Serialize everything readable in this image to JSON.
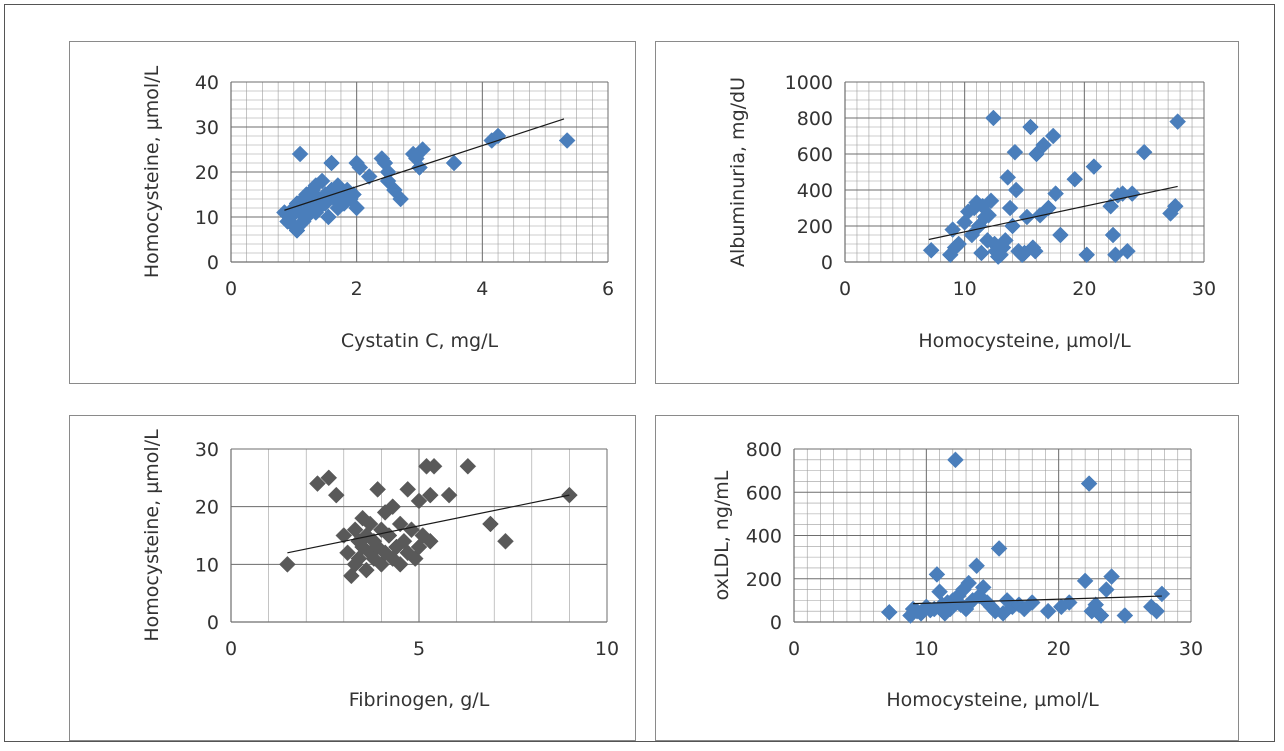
{
  "colors": {
    "blue_marker": "#4a7ebb",
    "gray_marker": "#595959",
    "trend": "#1a1a1a",
    "grid": "#9c9c9c"
  },
  "chart_data": [
    {
      "id": "tl",
      "type": "scatter",
      "xlabel": "Cystatin C, mg/L",
      "ylabel": "Homocysteine, µmol/L",
      "xlim": [
        0,
        6
      ],
      "ylim": [
        0,
        40
      ],
      "xticks": [
        0,
        2,
        4,
        6
      ],
      "yticks": [
        0,
        10,
        20,
        30,
        40
      ],
      "grid": {
        "x_major": 2,
        "x_minor": 0.25,
        "y_major": 10,
        "y_minor": 2
      },
      "marker_color": "#4a7ebb",
      "trendline": [
        [
          0.85,
          11.5
        ],
        [
          5.3,
          31.8
        ]
      ],
      "points": [
        [
          0.85,
          11
        ],
        [
          0.9,
          9
        ],
        [
          0.95,
          10
        ],
        [
          1.0,
          12
        ],
        [
          1.0,
          8
        ],
        [
          1.05,
          7
        ],
        [
          1.05,
          13
        ],
        [
          1.1,
          24
        ],
        [
          1.1,
          11
        ],
        [
          1.15,
          14
        ],
        [
          1.15,
          9
        ],
        [
          1.2,
          15
        ],
        [
          1.2,
          10
        ],
        [
          1.25,
          12
        ],
        [
          1.3,
          16
        ],
        [
          1.3,
          13
        ],
        [
          1.35,
          11
        ],
        [
          1.35,
          17
        ],
        [
          1.4,
          14
        ],
        [
          1.4,
          12
        ],
        [
          1.45,
          18
        ],
        [
          1.5,
          15
        ],
        [
          1.5,
          13
        ],
        [
          1.55,
          10
        ],
        [
          1.6,
          22
        ],
        [
          1.6,
          16
        ],
        [
          1.65,
          14
        ],
        [
          1.7,
          17
        ],
        [
          1.7,
          12
        ],
        [
          1.75,
          15
        ],
        [
          1.8,
          13
        ],
        [
          1.85,
          16
        ],
        [
          1.9,
          14
        ],
        [
          1.95,
          15
        ],
        [
          2.0,
          22
        ],
        [
          2.0,
          12
        ],
        [
          2.05,
          21
        ],
        [
          2.2,
          19
        ],
        [
          2.4,
          23
        ],
        [
          2.45,
          22
        ],
        [
          2.5,
          20
        ],
        [
          2.5,
          18
        ],
        [
          2.6,
          16
        ],
        [
          2.7,
          14
        ],
        [
          2.9,
          24
        ],
        [
          2.95,
          23
        ],
        [
          3.0,
          21
        ],
        [
          3.05,
          25
        ],
        [
          3.55,
          22
        ],
        [
          4.15,
          27
        ],
        [
          4.25,
          28
        ],
        [
          5.35,
          27
        ]
      ]
    },
    {
      "id": "tr",
      "type": "scatter",
      "xlabel": "Homocysteine, µmol/L",
      "ylabel": "Albuminuria, mg/dU",
      "xlim": [
        0,
        30
      ],
      "ylim": [
        0,
        1000
      ],
      "xticks": [
        0,
        10,
        20,
        30
      ],
      "yticks": [
        0,
        200,
        400,
        600,
        800,
        1000
      ],
      "grid": {
        "x_major": 10,
        "x_minor": 1,
        "y_major": 200,
        "y_minor": 50
      },
      "marker_color": "#4a7ebb",
      "trendline": [
        [
          7.0,
          125
        ],
        [
          27.8,
          420
        ]
      ],
      "points": [
        [
          7.2,
          65
        ],
        [
          8.8,
          40
        ],
        [
          9.0,
          180
        ],
        [
          9.2,
          80
        ],
        [
          9.5,
          100
        ],
        [
          10.0,
          220
        ],
        [
          10.3,
          280
        ],
        [
          10.6,
          150
        ],
        [
          10.8,
          300
        ],
        [
          11.0,
          330
        ],
        [
          11.2,
          200
        ],
        [
          11.4,
          50
        ],
        [
          11.5,
          310
        ],
        [
          11.7,
          250
        ],
        [
          11.9,
          120
        ],
        [
          12.0,
          260
        ],
        [
          12.2,
          340
        ],
        [
          12.4,
          800
        ],
        [
          12.5,
          100
        ],
        [
          12.6,
          60
        ],
        [
          12.8,
          30
        ],
        [
          13.0,
          40
        ],
        [
          13.2,
          80
        ],
        [
          13.4,
          120
        ],
        [
          13.6,
          470
        ],
        [
          13.8,
          300
        ],
        [
          14.0,
          200
        ],
        [
          14.2,
          610
        ],
        [
          14.3,
          400
        ],
        [
          14.5,
          60
        ],
        [
          14.8,
          40
        ],
        [
          15.0,
          50
        ],
        [
          15.2,
          250
        ],
        [
          15.5,
          750
        ],
        [
          15.7,
          80
        ],
        [
          15.9,
          60
        ],
        [
          16.0,
          600
        ],
        [
          16.3,
          260
        ],
        [
          16.6,
          650
        ],
        [
          17.0,
          300
        ],
        [
          17.4,
          700
        ],
        [
          17.6,
          380
        ],
        [
          18.0,
          150
        ],
        [
          19.2,
          460
        ],
        [
          20.2,
          40
        ],
        [
          20.8,
          530
        ],
        [
          22.2,
          310
        ],
        [
          22.4,
          150
        ],
        [
          22.6,
          40
        ],
        [
          22.8,
          370
        ],
        [
          23.2,
          380
        ],
        [
          23.6,
          60
        ],
        [
          24.0,
          380
        ],
        [
          25.0,
          610
        ],
        [
          27.2,
          270
        ],
        [
          27.6,
          310
        ],
        [
          27.8,
          780
        ]
      ]
    },
    {
      "id": "bl",
      "type": "scatter",
      "xlabel": "Fibrinogen, g/L",
      "ylabel": "Homocysteine, µmol/L",
      "xlim": [
        0,
        10
      ],
      "ylim": [
        0,
        30
      ],
      "xticks": [
        0,
        5,
        10
      ],
      "yticks": [
        0,
        10,
        20,
        30
      ],
      "grid": {
        "x_major": 5,
        "x_minor": 1,
        "y_major": 10,
        "y_minor": 10
      },
      "marker_color": "#595959",
      "trendline": [
        [
          1.5,
          12
        ],
        [
          9.0,
          22
        ]
      ],
      "points": [
        [
          1.5,
          10
        ],
        [
          2.3,
          24
        ],
        [
          2.6,
          25
        ],
        [
          2.8,
          22
        ],
        [
          3.0,
          15
        ],
        [
          3.1,
          12
        ],
        [
          3.2,
          8
        ],
        [
          3.3,
          16
        ],
        [
          3.3,
          10
        ],
        [
          3.4,
          14
        ],
        [
          3.4,
          11
        ],
        [
          3.5,
          18
        ],
        [
          3.5,
          13
        ],
        [
          3.6,
          9
        ],
        [
          3.6,
          15
        ],
        [
          3.7,
          12
        ],
        [
          3.7,
          17
        ],
        [
          3.8,
          11
        ],
        [
          3.8,
          14
        ],
        [
          3.9,
          13
        ],
        [
          3.9,
          23
        ],
        [
          4.0,
          10
        ],
        [
          4.0,
          16
        ],
        [
          4.1,
          19
        ],
        [
          4.1,
          12
        ],
        [
          4.2,
          15
        ],
        [
          4.3,
          20
        ],
        [
          4.3,
          11
        ],
        [
          4.4,
          13
        ],
        [
          4.5,
          17
        ],
        [
          4.5,
          10
        ],
        [
          4.6,
          14
        ],
        [
          4.7,
          23
        ],
        [
          4.7,
          12
        ],
        [
          4.8,
          16
        ],
        [
          4.9,
          11
        ],
        [
          5.0,
          13
        ],
        [
          5.0,
          21
        ],
        [
          5.1,
          15
        ],
        [
          5.2,
          27
        ],
        [
          5.3,
          22
        ],
        [
          5.3,
          14
        ],
        [
          5.4,
          27
        ],
        [
          5.8,
          22
        ],
        [
          6.3,
          27
        ],
        [
          6.9,
          17
        ],
        [
          7.3,
          14
        ],
        [
          9.0,
          22
        ]
      ]
    },
    {
      "id": "br",
      "type": "scatter",
      "xlabel": "Homocysteine, µmol/L",
      "ylabel": "oxLDL, ng/mL",
      "xlim": [
        0,
        30
      ],
      "ylim": [
        0,
        800
      ],
      "xticks": [
        0,
        10,
        20,
        30
      ],
      "yticks": [
        0,
        200,
        400,
        600,
        800
      ],
      "grid": {
        "x_major": 10,
        "x_minor": 1,
        "y_major": 200,
        "y_minor": 50
      },
      "marker_color": "#4a7ebb",
      "trendline": [
        [
          9.0,
          85
        ],
        [
          27.8,
          120
        ]
      ],
      "points": [
        [
          7.2,
          45
        ],
        [
          8.8,
          30
        ],
        [
          9.0,
          60
        ],
        [
          9.3,
          50
        ],
        [
          9.6,
          40
        ],
        [
          10.0,
          70
        ],
        [
          10.3,
          55
        ],
        [
          10.6,
          60
        ],
        [
          10.8,
          220
        ],
        [
          11.0,
          140
        ],
        [
          11.2,
          80
        ],
        [
          11.4,
          40
        ],
        [
          11.6,
          90
        ],
        [
          11.8,
          60
        ],
        [
          12.0,
          100
        ],
        [
          12.2,
          750
        ],
        [
          12.4,
          120
        ],
        [
          12.6,
          80
        ],
        [
          12.8,
          150
        ],
        [
          13.0,
          60
        ],
        [
          13.2,
          180
        ],
        [
          13.5,
          100
        ],
        [
          13.8,
          260
        ],
        [
          14.0,
          120
        ],
        [
          14.3,
          160
        ],
        [
          14.6,
          90
        ],
        [
          14.9,
          70
        ],
        [
          15.2,
          50
        ],
        [
          15.5,
          340
        ],
        [
          15.8,
          40
        ],
        [
          16.1,
          100
        ],
        [
          16.5,
          70
        ],
        [
          17.0,
          80
        ],
        [
          17.4,
          60
        ],
        [
          18.0,
          90
        ],
        [
          19.2,
          50
        ],
        [
          20.2,
          70
        ],
        [
          20.8,
          90
        ],
        [
          22.0,
          190
        ],
        [
          22.3,
          640
        ],
        [
          22.5,
          50
        ],
        [
          22.8,
          80
        ],
        [
          23.2,
          30
        ],
        [
          23.6,
          150
        ],
        [
          24.0,
          210
        ],
        [
          25.0,
          30
        ],
        [
          27.0,
          70
        ],
        [
          27.4,
          50
        ],
        [
          27.8,
          130
        ]
      ]
    }
  ]
}
